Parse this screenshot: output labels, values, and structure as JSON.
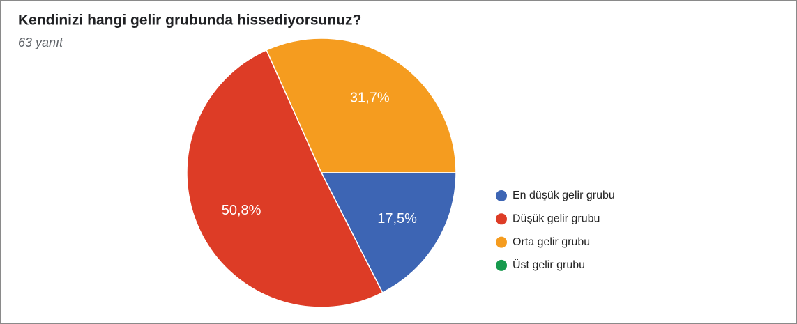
{
  "chart_data": {
    "type": "pie",
    "title": "Kendinizi hangi gelir grubunda hissediyorsunuz?",
    "subtitle": "63 yanıt",
    "categories": [
      "En düşük gelir grubu",
      "Düşük gelir grubu",
      "Orta gelir grubu",
      "Üst gelir grubu"
    ],
    "values": [
      17.5,
      50.8,
      31.7,
      0
    ],
    "value_labels": [
      "17,5%",
      "50,8%",
      "31,7%",
      null
    ],
    "colors": [
      "#3d65b4",
      "#dd3c26",
      "#f59c1f",
      "#179a4d"
    ],
    "legend": "right"
  }
}
